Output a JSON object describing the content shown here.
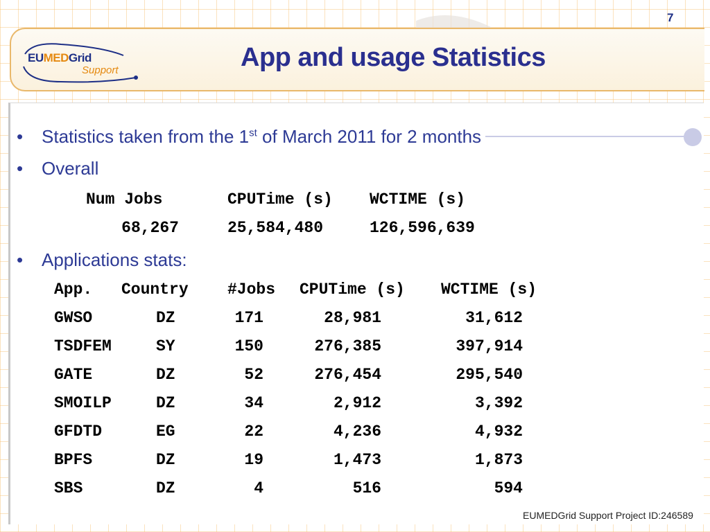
{
  "slide_number": "7",
  "title": "App and usage Statistics",
  "logo": {
    "eu": "EU",
    "med": "MED",
    "grid": "Grid",
    "support": "Support"
  },
  "bullets": {
    "b1_pre": "Statistics taken from the 1",
    "b1_sup": "st",
    "b1_post": " of March 2011 for 2 months",
    "b2": "Overall",
    "b3": "Applications stats:"
  },
  "overall": {
    "headers": [
      "Num Jobs",
      "CPUTime (s)",
      "WCTIME (s)"
    ],
    "values": [
      "68,267",
      "25,584,480",
      "126,596,639"
    ]
  },
  "apps": {
    "headers": [
      "App.",
      "Country",
      "#Jobs",
      "CPUTime (s)",
      "WCTIME (s)"
    ],
    "rows": [
      [
        "GWSO",
        "DZ",
        "171",
        "28,981",
        "31,612"
      ],
      [
        "TSDFEM",
        "SY",
        "150",
        "276,385",
        "397,914"
      ],
      [
        "GATE",
        "DZ",
        "52",
        "276,454",
        "295,540"
      ],
      [
        "SMOILP",
        "DZ",
        "34",
        "2,912",
        "3,392"
      ],
      [
        "GFDTD",
        "EG",
        "22",
        "4,236",
        "4,932"
      ],
      [
        "BPFS",
        "DZ",
        "19",
        "1,473",
        "1,873"
      ],
      [
        "SBS",
        "DZ",
        "4",
        "516",
        "594"
      ]
    ]
  },
  "footer": "EUMEDGrid Support Project ID:246589"
}
